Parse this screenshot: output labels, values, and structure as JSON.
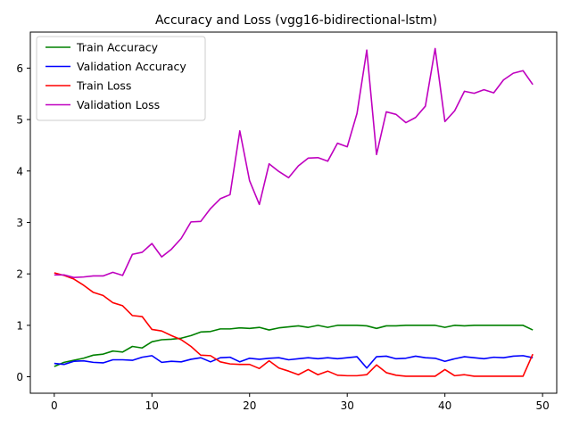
{
  "chart_data": {
    "type": "line",
    "title": "Accuracy and Loss (vgg16-bidirectional-lstm)",
    "xlabel": "",
    "ylabel": "",
    "xlim": [
      -2.45,
      51.45
    ],
    "ylim": [
      -0.32,
      6.7
    ],
    "xticks": [
      0,
      10,
      20,
      30,
      40,
      50
    ],
    "yticks": [
      0,
      1,
      2,
      3,
      4,
      5,
      6
    ],
    "grid": false,
    "legend_position": "top-left",
    "x": [
      0,
      1,
      2,
      3,
      4,
      5,
      6,
      7,
      8,
      9,
      10,
      11,
      12,
      13,
      14,
      15,
      16,
      17,
      18,
      19,
      20,
      21,
      22,
      23,
      24,
      25,
      26,
      27,
      28,
      29,
      30,
      31,
      32,
      33,
      34,
      35,
      36,
      37,
      38,
      39,
      40,
      41,
      42,
      43,
      44,
      45,
      46,
      47,
      48,
      49
    ],
    "series": [
      {
        "name": "Train Accuracy",
        "color": "#008000",
        "values": [
          0.2,
          0.28,
          0.32,
          0.36,
          0.42,
          0.44,
          0.5,
          0.48,
          0.59,
          0.56,
          0.68,
          0.72,
          0.73,
          0.75,
          0.8,
          0.87,
          0.88,
          0.93,
          0.93,
          0.95,
          0.94,
          0.96,
          0.91,
          0.95,
          0.97,
          0.99,
          0.96,
          1.0,
          0.96,
          1.0,
          1.0,
          1.0,
          0.99,
          0.94,
          0.99,
          0.99,
          1.0,
          1.0,
          1.0,
          1.0,
          0.96,
          1.0,
          0.99,
          1.0,
          1.0,
          1.0,
          1.0,
          1.0,
          1.0,
          0.91
        ]
      },
      {
        "name": "Validation Accuracy",
        "color": "#0000ff",
        "values": [
          0.26,
          0.24,
          0.3,
          0.31,
          0.28,
          0.27,
          0.33,
          0.33,
          0.32,
          0.38,
          0.41,
          0.28,
          0.3,
          0.29,
          0.34,
          0.37,
          0.29,
          0.37,
          0.38,
          0.29,
          0.36,
          0.34,
          0.36,
          0.37,
          0.33,
          0.35,
          0.37,
          0.35,
          0.37,
          0.35,
          0.37,
          0.39,
          0.17,
          0.39,
          0.4,
          0.35,
          0.36,
          0.4,
          0.37,
          0.36,
          0.3,
          0.35,
          0.39,
          0.37,
          0.35,
          0.38,
          0.37,
          0.4,
          0.41,
          0.37
        ]
      },
      {
        "name": "Train Loss",
        "color": "#ff0000",
        "values": [
          2.02,
          1.97,
          1.9,
          1.78,
          1.64,
          1.58,
          1.44,
          1.38,
          1.19,
          1.17,
          0.92,
          0.89,
          0.8,
          0.72,
          0.59,
          0.42,
          0.41,
          0.29,
          0.25,
          0.24,
          0.24,
          0.16,
          0.31,
          0.17,
          0.11,
          0.04,
          0.14,
          0.04,
          0.11,
          0.03,
          0.02,
          0.02,
          0.04,
          0.23,
          0.08,
          0.03,
          0.01,
          0.01,
          0.01,
          0.01,
          0.14,
          0.02,
          0.04,
          0.01,
          0.01,
          0.01,
          0.01,
          0.01,
          0.01,
          0.44
        ]
      },
      {
        "name": "Validation Loss",
        "color": "#bf00bf",
        "values": [
          1.98,
          1.98,
          1.93,
          1.94,
          1.96,
          1.96,
          2.03,
          1.97,
          2.38,
          2.42,
          2.59,
          2.33,
          2.48,
          2.69,
          3.01,
          3.02,
          3.27,
          3.46,
          3.54,
          4.78,
          3.81,
          3.35,
          4.14,
          3.99,
          3.87,
          4.1,
          4.25,
          4.26,
          4.19,
          4.54,
          4.47,
          5.12,
          6.35,
          4.32,
          5.15,
          5.1,
          4.94,
          5.04,
          5.26,
          6.38,
          4.96,
          5.17,
          5.55,
          5.51,
          5.58,
          5.52,
          5.77,
          5.9,
          5.95,
          5.68
        ]
      }
    ]
  }
}
